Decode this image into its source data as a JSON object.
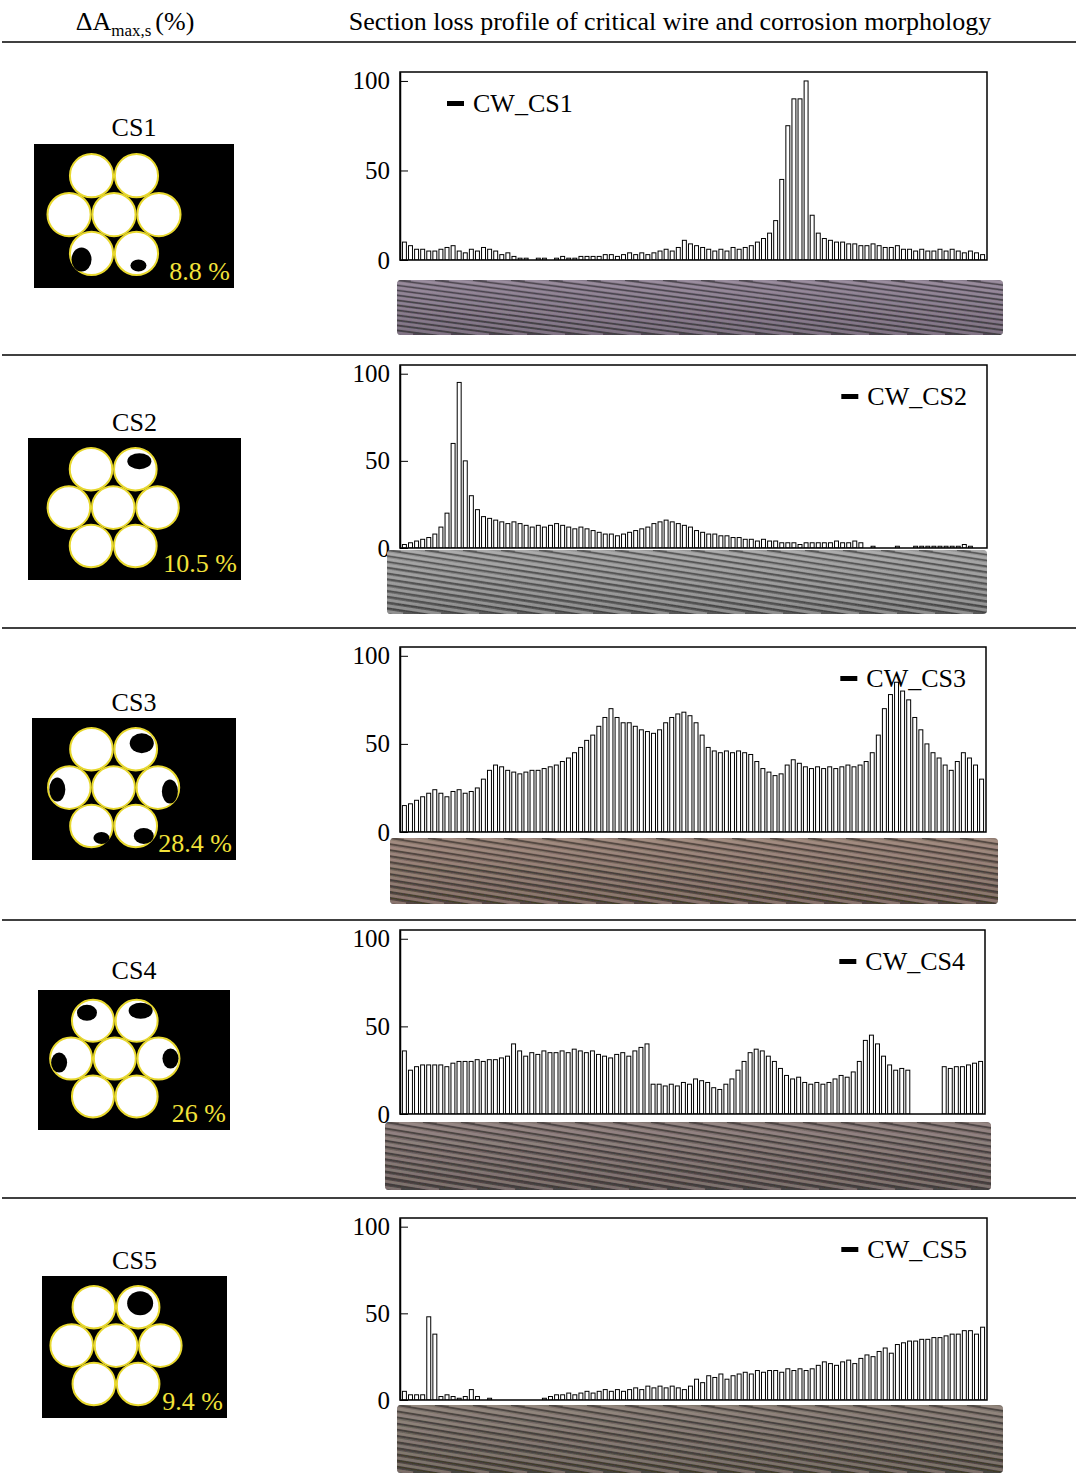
{
  "header": {
    "col1": {
      "text": "ΔA",
      "subscript": "max,s",
      "suffix": "(%)"
    },
    "col2": "Section loss profile of critical wire and corrosion morphology"
  },
  "rows": [
    {
      "label": "CS1",
      "area_loss": "8.8 %"
    },
    {
      "label": "CS2",
      "area_loss": "10.5 %"
    },
    {
      "label": "CS3",
      "area_loss": "28.4 %"
    },
    {
      "label": "CS4",
      "area_loss": "26 %"
    },
    {
      "label": "CS5",
      "area_loss": "9.4 %"
    }
  ],
  "chart_data": [
    {
      "type": "bar",
      "ylim": [
        0,
        105
      ],
      "yticks": [
        0,
        50,
        100
      ],
      "legend": "upper left",
      "tick_labels": "y",
      "series": [
        {
          "name": "CW_CS1",
          "color": "#000000",
          "values": [
            10,
            8,
            6,
            6,
            5,
            5,
            6,
            7,
            8,
            5,
            4,
            6,
            5,
            7,
            6,
            5,
            3,
            4,
            2,
            1,
            1,
            0,
            1,
            1,
            0,
            1,
            2,
            1,
            1,
            2,
            2,
            2,
            2,
            3,
            3,
            2,
            3,
            4,
            3,
            4,
            3,
            4,
            5,
            6,
            5,
            7,
            11,
            9,
            8,
            7,
            6,
            5,
            6,
            5,
            7,
            6,
            7,
            8,
            10,
            12,
            15,
            22,
            45,
            75,
            90,
            90,
            100,
            25,
            15,
            12,
            11,
            10,
            10,
            9,
            9,
            8,
            8,
            9,
            8,
            7,
            7,
            8,
            6,
            6,
            5,
            6,
            5,
            5,
            6,
            5,
            6,
            5,
            4,
            5,
            4,
            3
          ]
        }
      ]
    },
    {
      "type": "bar",
      "ylim": [
        0,
        105
      ],
      "yticks": [
        0,
        50,
        100
      ],
      "legend": "upper right",
      "tick_labels": "y",
      "series": [
        {
          "name": "CW_CS2",
          "color": "#000000",
          "values": [
            2,
            3,
            4,
            5,
            6,
            8,
            12,
            20,
            60,
            95,
            50,
            30,
            22,
            18,
            17,
            16,
            15,
            14,
            15,
            14,
            13,
            12,
            13,
            12,
            13,
            14,
            13,
            12,
            11,
            12,
            11,
            10,
            9,
            8,
            8,
            7,
            8,
            9,
            10,
            11,
            12,
            14,
            15,
            16,
            15,
            14,
            13,
            12,
            10,
            9,
            8,
            8,
            7,
            7,
            6,
            6,
            5,
            5,
            4,
            5,
            4,
            4,
            3,
            3,
            3,
            2,
            3,
            3,
            3,
            3,
            3,
            4,
            3,
            3,
            4,
            3,
            0,
            1,
            0,
            0,
            0,
            1,
            0,
            0,
            1,
            1,
            1,
            1,
            1,
            1,
            1,
            1,
            2,
            1,
            0,
            0
          ]
        }
      ]
    },
    {
      "type": "bar",
      "ylim": [
        0,
        105
      ],
      "yticks": [
        0,
        50,
        100
      ],
      "legend": "upper right",
      "tick_labels": "y",
      "series": [
        {
          "name": "CW_CS3",
          "color": "#000000",
          "values": [
            15,
            16,
            18,
            20,
            22,
            24,
            22,
            20,
            23,
            24,
            22,
            23,
            25,
            30,
            35,
            38,
            37,
            35,
            34,
            33,
            34,
            35,
            35,
            36,
            37,
            38,
            40,
            42,
            45,
            48,
            52,
            55,
            60,
            65,
            70,
            65,
            62,
            62,
            60,
            58,
            57,
            56,
            58,
            62,
            65,
            67,
            68,
            66,
            62,
            55,
            48,
            46,
            45,
            46,
            45,
            46,
            45,
            44,
            40,
            36,
            34,
            32,
            33,
            38,
            41,
            39,
            37,
            36,
            37,
            36,
            37,
            36,
            37,
            38,
            37,
            38,
            40,
            45,
            55,
            70,
            78,
            85,
            80,
            75,
            65,
            58,
            50,
            45,
            42,
            38,
            35,
            40,
            45,
            42,
            38,
            30
          ]
        }
      ]
    },
    {
      "type": "bar",
      "ylim": [
        0,
        105
      ],
      "yticks": [
        0,
        50,
        100
      ],
      "legend": "upper right",
      "tick_labels": "y",
      "series": [
        {
          "name": "CW_CS4",
          "color": "#000000",
          "values": [
            36,
            25,
            27,
            28,
            28,
            28,
            28,
            27,
            29,
            30,
            30,
            30,
            31,
            30,
            31,
            31,
            32,
            33,
            40,
            36,
            33,
            35,
            34,
            36,
            35,
            35,
            36,
            35,
            37,
            36,
            35,
            36,
            34,
            33,
            32,
            34,
            35,
            33,
            36,
            38,
            40,
            17,
            17,
            16,
            17,
            16,
            18,
            17,
            20,
            19,
            18,
            15,
            14,
            17,
            20,
            25,
            30,
            35,
            37,
            36,
            33,
            30,
            26,
            22,
            20,
            21,
            18,
            17,
            18,
            17,
            18,
            20,
            22,
            21,
            24,
            30,
            42,
            45,
            40,
            33,
            28,
            25,
            26,
            25,
            0,
            0,
            0,
            0,
            0,
            27,
            26,
            27,
            27,
            28,
            29,
            30
          ]
        }
      ]
    },
    {
      "type": "bar",
      "ylim": [
        0,
        105
      ],
      "yticks": [
        0,
        50,
        100
      ],
      "legend": "upper right",
      "tick_labels": "y",
      "series": [
        {
          "name": "CW_CS5",
          "color": "#000000",
          "values": [
            5,
            3,
            3,
            3,
            48,
            38,
            2,
            3,
            2,
            1,
            2,
            6,
            2,
            0,
            1,
            0,
            0,
            0,
            0,
            0,
            0,
            0,
            0,
            1,
            2,
            3,
            3,
            4,
            3,
            4,
            5,
            4,
            5,
            6,
            5,
            6,
            5,
            6,
            7,
            6,
            8,
            7,
            8,
            7,
            8,
            7,
            6,
            8,
            12,
            10,
            14,
            13,
            15,
            12,
            14,
            15,
            16,
            15,
            17,
            16,
            17,
            17,
            16,
            18,
            17,
            18,
            17,
            18,
            20,
            22,
            21,
            20,
            22,
            23,
            21,
            24,
            26,
            25,
            28,
            30,
            27,
            32,
            33,
            34,
            34,
            35,
            35,
            36,
            36,
            37,
            38,
            38,
            40,
            40,
            38,
            42
          ]
        }
      ]
    }
  ]
}
